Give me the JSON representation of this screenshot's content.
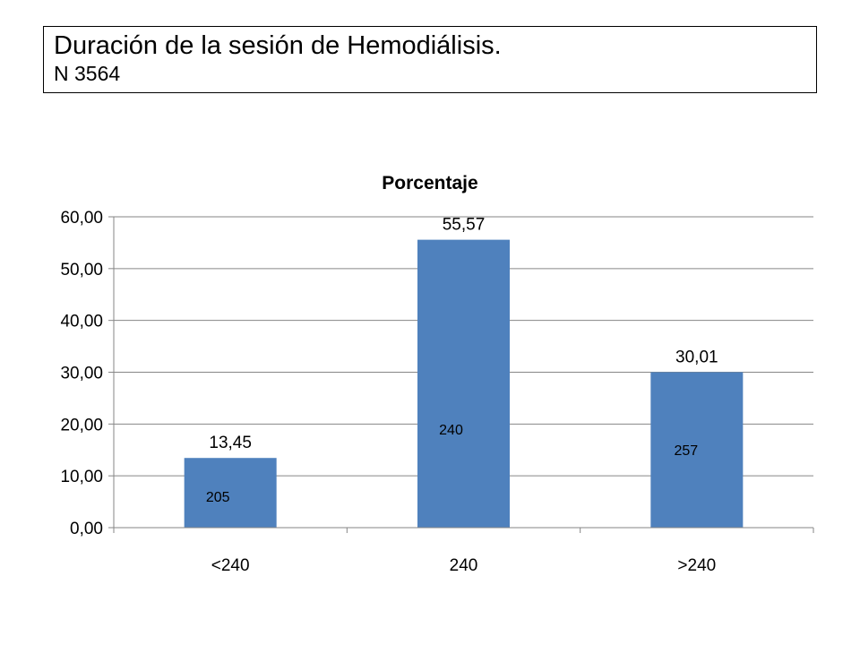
{
  "header": {
    "title": "Duración de la sesión de Hemodiálisis.",
    "subtitle": "N 3564"
  },
  "chart_data": {
    "type": "bar",
    "title": "Porcentaje",
    "xlabel": "",
    "ylabel": "",
    "categories": [
      "<240",
      "240",
      ">240"
    ],
    "values": [
      13.45,
      55.57,
      30.01
    ],
    "value_labels": [
      "13,45",
      "55,57",
      "30,01"
    ],
    "inner_labels": [
      "205",
      "240",
      "257"
    ],
    "ylim": [
      0,
      60
    ],
    "yticks": [
      "0,00",
      "10,00",
      "20,00",
      "30,00",
      "40,00",
      "50,00",
      "60,00"
    ],
    "grid": true,
    "legend": "none",
    "bar_color": "#4F81BD",
    "grid_color": "#868686"
  }
}
